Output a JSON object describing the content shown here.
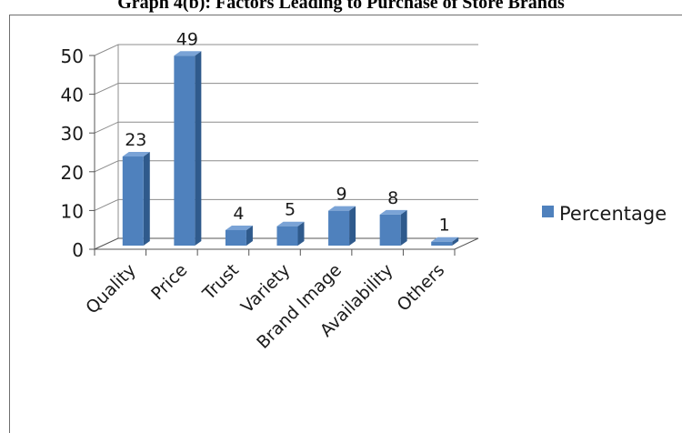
{
  "chart_data": {
    "type": "bar",
    "title": "Graph 4(b): Factors Leading to Purchase of Store Brands",
    "categories": [
      "Quality",
      "Price",
      "Trust",
      "Variety",
      "Brand Image",
      "Availability",
      "Others"
    ],
    "series": [
      {
        "name": "Percentage",
        "values": [
          23,
          49,
          4,
          5,
          9,
          8,
          1
        ]
      }
    ],
    "data_labels": [
      "23",
      "49",
      "4",
      "5",
      "9",
      "8",
      "1"
    ],
    "y_ticks": [
      "0",
      "10",
      "20",
      "30",
      "40",
      "50"
    ],
    "ylim": [
      0,
      50
    ],
    "grid": true,
    "three_d": true,
    "legend_position": "right",
    "colors": {
      "bar_front": "#4f81bd",
      "bar_side": "#2f5a8c",
      "bar_top": "#7aa3d6",
      "grid": "#8c8c8c"
    }
  }
}
